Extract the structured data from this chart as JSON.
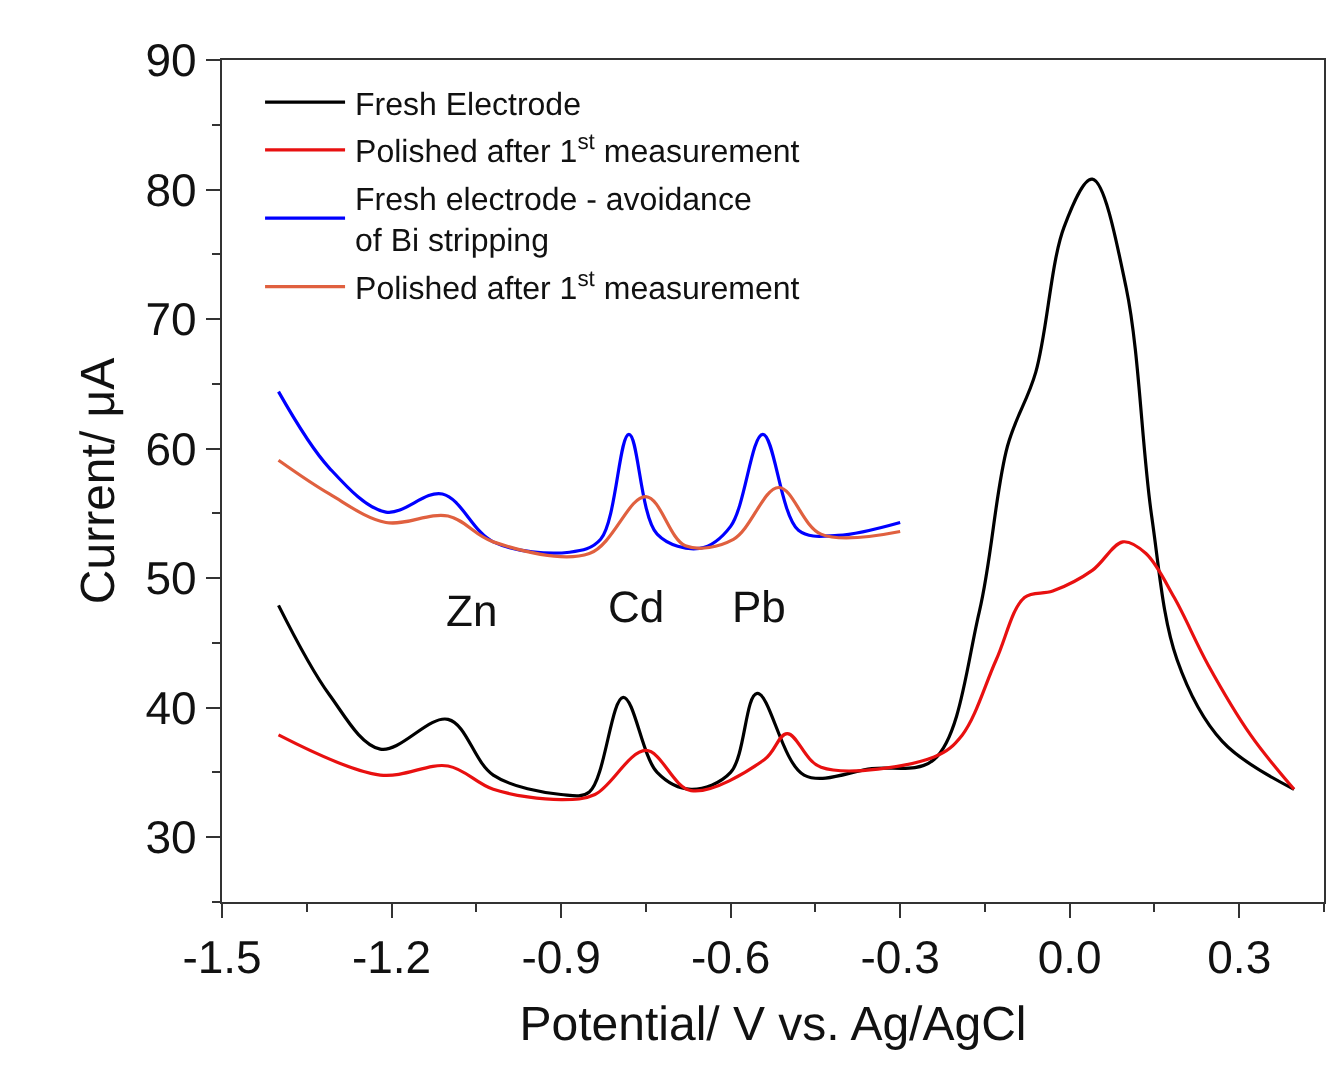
{
  "chart_data": {
    "type": "line",
    "xlabel": "Potential/ V vs. Ag/AgCl",
    "ylabel": "Current/ μA",
    "xlim": [
      -1.5,
      0.45
    ],
    "xticks": [
      -1.5,
      -1.2,
      -0.9,
      -0.6,
      -0.3,
      {
        "value": 0,
        "label": "0.0"
      },
      0.3
    ],
    "ylim": [
      25,
      90
    ],
    "yticks": [
      30,
      40,
      50,
      60,
      70,
      80,
      90
    ],
    "legend": "top left",
    "marker": "none",
    "line_style": "solid",
    "series": [
      {
        "name": "Fresh Electrode",
        "color": "#000000",
        "x": [
          -1.4,
          -1.31,
          -1.22,
          -1.1,
          -1.02,
          -0.9,
          -0.85,
          -0.79,
          -0.73,
          -0.67,
          -0.6,
          -0.553,
          -0.47,
          -0.35,
          -0.24,
          -0.16,
          -0.11,
          -0.06,
          -0.01,
          0.04,
          0.1,
          0.145,
          0.19,
          0.27,
          0.397
        ],
        "values": [
          47.9,
          41.0,
          36.8,
          39.1,
          34.8,
          33.3,
          33.5,
          40.8,
          35.0,
          33.7,
          35.0,
          41.1,
          34.8,
          35.3,
          36.0,
          47.4,
          60.2,
          65.9,
          77.1,
          80.8,
          72.4,
          54.8,
          43.7,
          37.4,
          33.7
        ]
      },
      {
        "name": "Polished after 1$^{st}$ measurement",
        "color": "#e81010",
        "x": [
          -1.4,
          -1.22,
          -1.1,
          -1.02,
          -0.9,
          -0.84,
          -0.75,
          -0.67,
          -0.54,
          -0.5,
          -0.44,
          -0.24,
          -0.19,
          -0.13,
          -0.08,
          -0.03,
          0.04,
          0.094,
          0.135,
          0.185,
          0.245,
          0.32,
          0.397
        ],
        "values": [
          37.9,
          34.8,
          35.5,
          33.7,
          32.9,
          33.3,
          36.7,
          33.6,
          36.0,
          38.0,
          35.4,
          36.2,
          37.9,
          43.7,
          48.5,
          49.0,
          50.6,
          52.8,
          51.9,
          48.5,
          43.3,
          37.9,
          33.7
        ]
      },
      {
        "name": "Fresh electrode - avoidance of Bi stripping",
        "color": "#0000ff",
        "x": [
          -1.4,
          -1.31,
          -1.21,
          -1.11,
          -1.02,
          -0.885,
          -0.83,
          -0.78,
          -0.73,
          -0.655,
          -0.6,
          -0.543,
          -0.48,
          -0.41,
          -0.3
        ],
        "values": [
          64.4,
          58.5,
          55.1,
          56.5,
          52.8,
          52.0,
          53.0,
          61.1,
          53.4,
          52.3,
          54.0,
          61.1,
          53.7,
          53.3,
          54.3
        ]
      },
      {
        "name": "Polished after 1$^{st}$ measurement",
        "color": "#e0603f",
        "x": [
          -1.4,
          -1.31,
          -1.21,
          -1.1,
          -1.02,
          -0.85,
          -0.75,
          -0.68,
          -0.595,
          -0.515,
          -0.44,
          -0.3
        ],
        "values": [
          59.1,
          56.5,
          54.3,
          54.8,
          52.8,
          51.9,
          56.3,
          52.5,
          53.0,
          57.0,
          53.4,
          53.6
        ]
      }
    ],
    "annotations": [
      "Zn",
      "Cd",
      "Pb"
    ]
  }
}
